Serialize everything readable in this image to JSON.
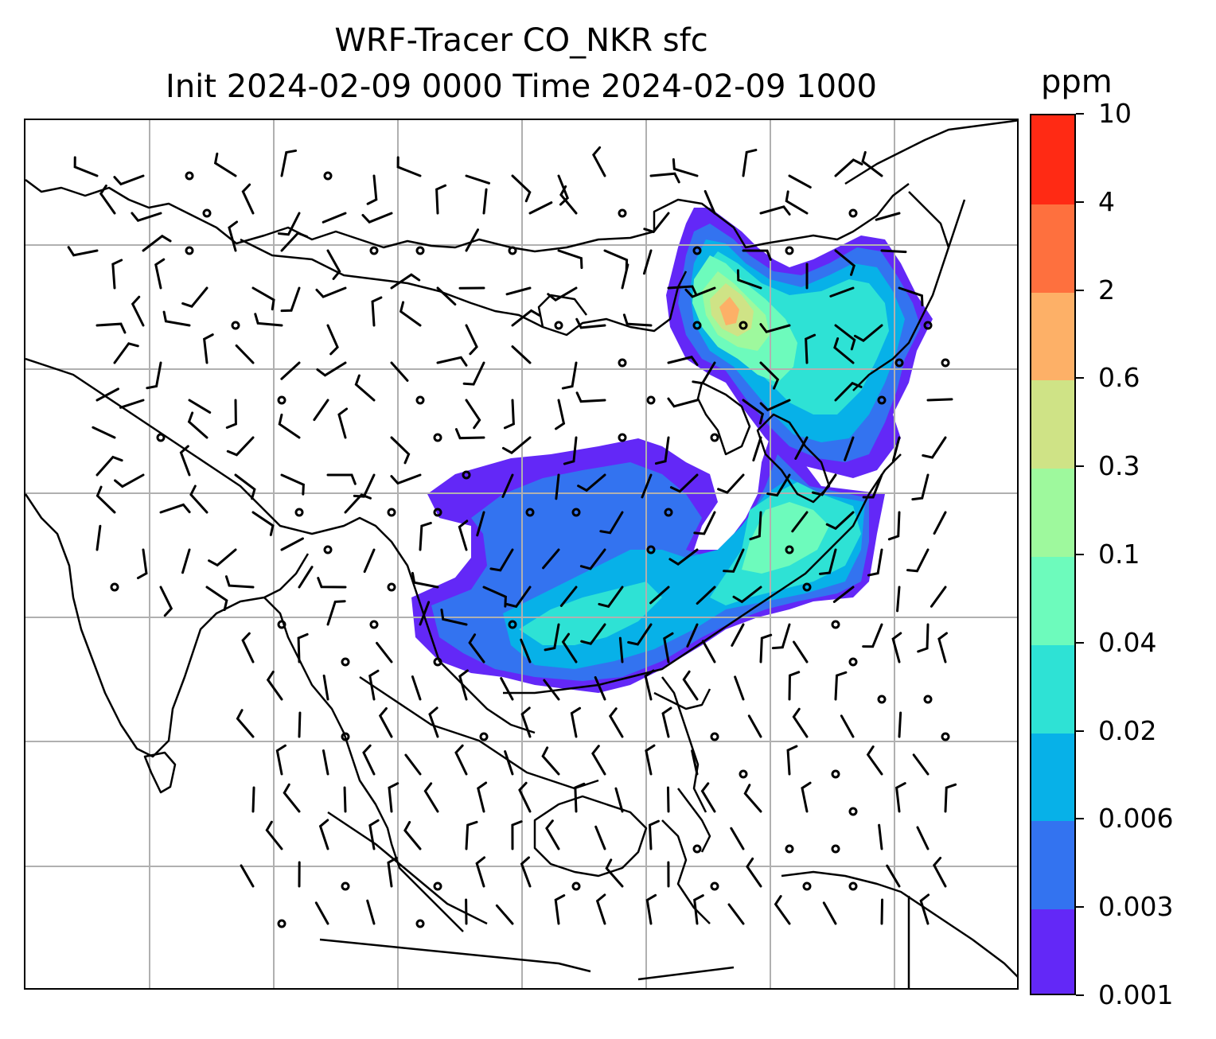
{
  "title": {
    "line1": "WRF-Tracer CO_NKR sfc",
    "line2": "Init 2024-02-09 0000 Time 2024-02-09 1000"
  },
  "colorbar": {
    "unit": "ppm",
    "levels": [
      "0.001",
      "0.003",
      "0.006",
      "0.02",
      "0.04",
      "0.1",
      "0.3",
      "0.6",
      "2",
      "4",
      "10"
    ],
    "colors": [
      "#6328f7",
      "#3373f0",
      "#07b1e8",
      "#2ee2d5",
      "#6dfbbc",
      "#9ef99d",
      "#cfe386",
      "#fdb067",
      "#fe703e",
      "#ff2a14"
    ]
  },
  "map": {
    "gridlines": true,
    "features": [
      "coastlines",
      "country-borders",
      "lat-lon-gridlines",
      "wind-barbs",
      "tracer-concentration-fill"
    ]
  }
}
